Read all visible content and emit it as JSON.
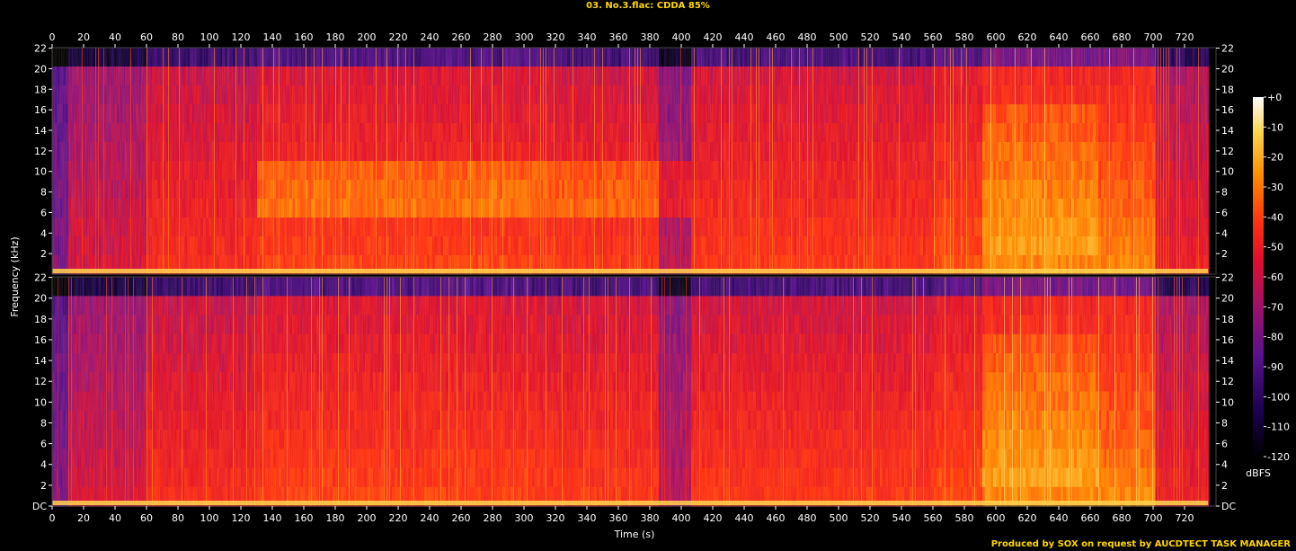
{
  "title": "03. No.3.flac: CDDA 85%",
  "footer": "Produced by SOX on request by AUCDTECT TASK MANAGER",
  "chart_data": {
    "type": "heatmap",
    "xlabel": "Time (s)",
    "ylabel": "Frequency (kHz)",
    "colorbar_label": "dBFS",
    "xlim": [
      0,
      740
    ],
    "ylim": [
      0,
      22.05
    ],
    "x_ticks": [
      "0",
      "20",
      "40",
      "60",
      "80",
      "100",
      "120",
      "140",
      "160",
      "180",
      "200",
      "220",
      "240",
      "260",
      "280",
      "300",
      "320",
      "340",
      "360",
      "380",
      "400",
      "420",
      "440",
      "460",
      "480",
      "500",
      "520",
      "540",
      "560",
      "580",
      "600",
      "620",
      "640",
      "660",
      "680",
      "700",
      "720"
    ],
    "y_ticks_top": [
      "2",
      "4",
      "6",
      "8",
      "10",
      "12",
      "14",
      "16",
      "18",
      "20",
      "22"
    ],
    "y_ticks_bottom": [
      "DC",
      "2",
      "4",
      "6",
      "8",
      "10",
      "12",
      "14",
      "16",
      "18",
      "20",
      "22"
    ],
    "colorbar_ticks": [
      "+0",
      "-10",
      "-20",
      "-30",
      "-40",
      "-50",
      "-60",
      "-70",
      "-80",
      "-90",
      "-100",
      "-110",
      "-120"
    ],
    "colorbar_range": [
      -120,
      0
    ],
    "channels": 2,
    "colors": {
      "background": "#000000",
      "palette": [
        "#000000",
        "#1a0050",
        "#5a1090",
        "#a0106a",
        "#e00f2a",
        "#ff3010",
        "#ff8a00",
        "#ffd24a",
        "#ffffff"
      ]
    }
  }
}
